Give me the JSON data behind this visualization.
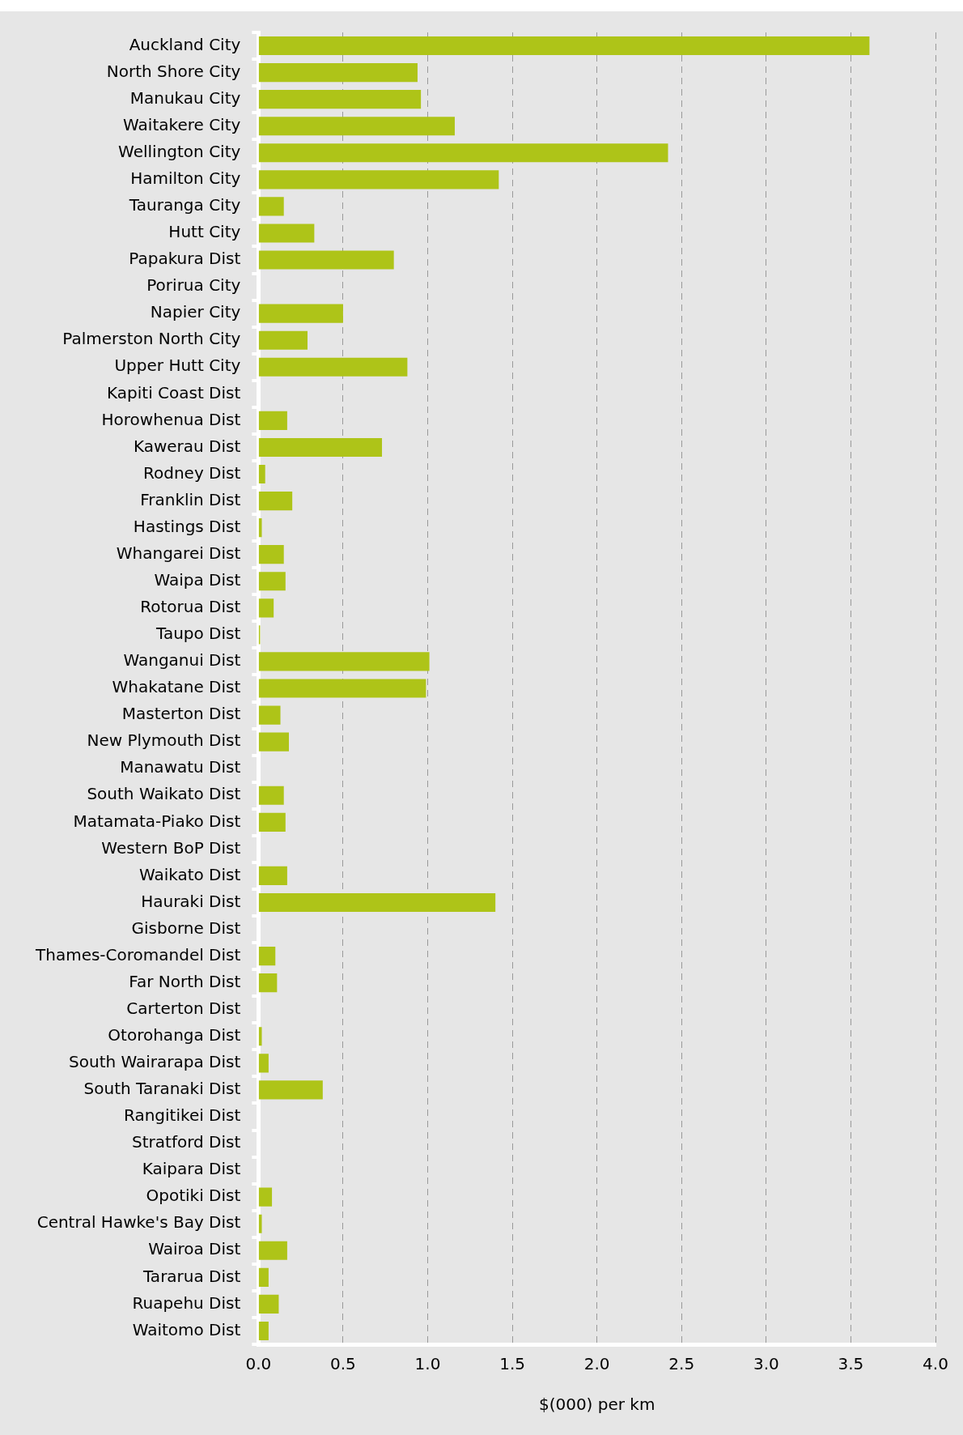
{
  "chart_data": {
    "type": "bar",
    "orientation": "horizontal",
    "xlabel": "$(000) per km",
    "color": "#aec418",
    "categories": [
      "Auckland City",
      "North Shore City",
      "Manukau City",
      "Waitakere City",
      "Wellington City",
      "Hamilton City",
      "Tauranga City",
      "Hutt City",
      "Papakura Dist",
      "Porirua City",
      "Napier City",
      "Palmerston North City",
      "Upper Hutt City",
      "Kapiti Coast Dist",
      "Horowhenua Dist",
      "Kawerau Dist",
      "Rodney Dist",
      "Franklin Dist",
      "Hastings Dist",
      "Whangarei Dist",
      "Waipa Dist",
      "Rotorua Dist",
      "Taupo Dist",
      "Wanganui Dist",
      "Whakatane Dist",
      "Masterton Dist",
      "New Plymouth Dist",
      "Manawatu Dist",
      "South Waikato Dist",
      "Matamata-Piako Dist",
      "Western BoP Dist",
      "Waikato Dist",
      "Hauraki Dist",
      "Gisborne Dist",
      "Thames-Coromandel Dist",
      "Far North Dist",
      "Carterton Dist",
      "Otorohanga Dist",
      "South Wairarapa Dist",
      "South Taranaki Dist",
      "Rangitikei Dist",
      "Stratford Dist",
      "Kaipara Dist",
      "Opotiki Dist",
      "Central Hawke's Bay Dist",
      "Wairoa Dist",
      "Tararua Dist",
      "Ruapehu Dist",
      "Waitomo Dist"
    ],
    "values": [
      3.61,
      0.94,
      0.96,
      1.16,
      2.42,
      1.42,
      0.15,
      0.33,
      0.8,
      0,
      0.5,
      0.29,
      0.88,
      0,
      0.17,
      0.73,
      0.04,
      0.2,
      0.02,
      0.15,
      0.16,
      0.09,
      0.01,
      1.01,
      0.99,
      0.13,
      0.18,
      0,
      0.15,
      0.16,
      0,
      0.17,
      1.4,
      0,
      0.1,
      0.11,
      0,
      0.02,
      0.06,
      0.38,
      0,
      0,
      0,
      0.08,
      0.02,
      0.17,
      0.06,
      0.12,
      0.06
    ],
    "xlim": [
      0,
      4
    ],
    "xticks": [
      {
        "value": 0,
        "label": "0.0"
      },
      {
        "value": 0.5,
        "label": "0.5"
      },
      {
        "value": 1,
        "label": "1.0"
      },
      {
        "value": 1.5,
        "label": "1.5"
      },
      {
        "value": 2,
        "label": "2.0"
      },
      {
        "value": 2.5,
        "label": "2.5"
      },
      {
        "value": 3,
        "label": "3.0"
      },
      {
        "value": 3.5,
        "label": "3.5"
      },
      {
        "value": 4,
        "label": "4.0"
      }
    ],
    "grid": "x"
  }
}
